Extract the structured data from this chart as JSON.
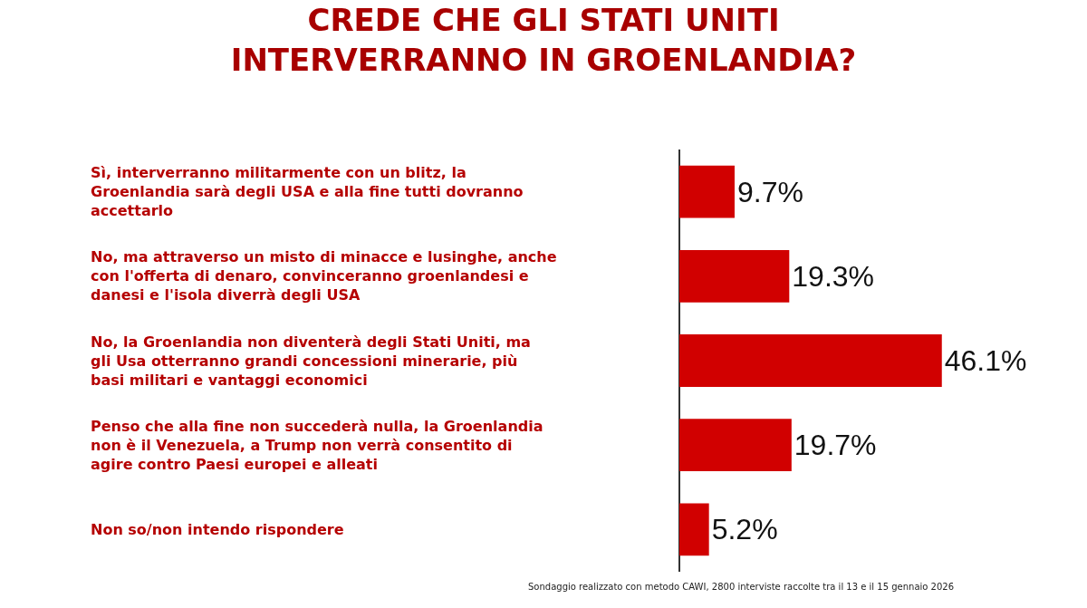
{
  "chart_data": {
    "type": "bar",
    "orientation": "horizontal",
    "title": "CREDE CHE GLI STATI UNITI INTERVERRANNO IN GROENLANDIA?",
    "categories": [
      "Sì, interverranno militarmente con un blitz, la Groenlandia sarà degli USA e alla fine tutti dovranno accettarlo",
      "No, ma attraverso un misto di minacce e lusinghe, anche con l'offerta di denaro, convinceranno groenlandesi e danesi e l'isola diverrà degli USA",
      "No, la Groenlandia non diventerà degli Stati Uniti, ma gli Usa otterranno grandi concessioni minerarie, più basi militari e vantaggi economici",
      "Penso che alla fine non succederà nulla, la Groenlandia non è il Venezuela, a Trump non verrà consentito di agire contro Paesi europei e alleati",
      "Non so/non intendo rispondere"
    ],
    "values": [
      9.7,
      19.3,
      46.1,
      19.7,
      5.2
    ],
    "value_labels": [
      "9.7%",
      "19.3%",
      "46.1%",
      "19.7%",
      "5.2%"
    ],
    "color": "#d10000",
    "tick_labels": "y",
    "grid": false,
    "annotations": [
      "Sondaggio realizzato con metodo CAWI, 2800 interviste raccolte tra il 13 e il 15 gennaio 2026"
    ]
  }
}
